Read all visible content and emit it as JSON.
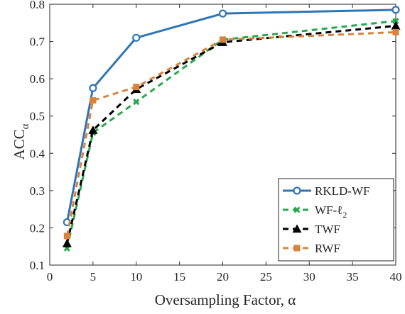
{
  "chart_data": {
    "type": "line",
    "xlabel": "Oversampling Factor, α",
    "ylabel_main": "ACC",
    "ylabel_sub": "α",
    "xlim": [
      0,
      40
    ],
    "ylim": [
      0.1,
      0.8
    ],
    "xticks": [
      0,
      5,
      10,
      15,
      20,
      25,
      30,
      35,
      40
    ],
    "yticks": [
      0.1,
      0.2,
      0.3,
      0.4,
      0.5,
      0.6,
      0.7,
      0.8
    ],
    "ytick_labels": [
      "0.1",
      "0.2",
      "0.3",
      "0.4",
      "0.5",
      "0.6",
      "0.7",
      "0.8"
    ],
    "grid": false,
    "legend_position": "bottom-right",
    "x": [
      2,
      5,
      10,
      20,
      40
    ],
    "series": [
      {
        "name": "RKLD-WF",
        "legend_label": "RKLD-WF",
        "values": [
          0.215,
          0.575,
          0.71,
          0.775,
          0.785
        ],
        "color": "#2e75b6",
        "dash": "",
        "marker": "circle"
      },
      {
        "name": "WF-ℓ2",
        "legend_label": "WF-ℓ",
        "legend_sub": "2",
        "values": [
          0.145,
          0.455,
          0.538,
          0.705,
          0.755
        ],
        "color": "#22aa4a",
        "dash": "8 6",
        "marker": "x"
      },
      {
        "name": "TWF",
        "legend_label": "TWF",
        "values": [
          0.158,
          0.462,
          0.572,
          0.698,
          0.742
        ],
        "color": "#000000",
        "dash": "8 6",
        "marker": "triangle"
      },
      {
        "name": "RWF",
        "legend_label": "RWF",
        "values": [
          0.178,
          0.542,
          0.578,
          0.705,
          0.725
        ],
        "color": "#d8823c",
        "dash": "8 6",
        "marker": "square"
      }
    ]
  }
}
